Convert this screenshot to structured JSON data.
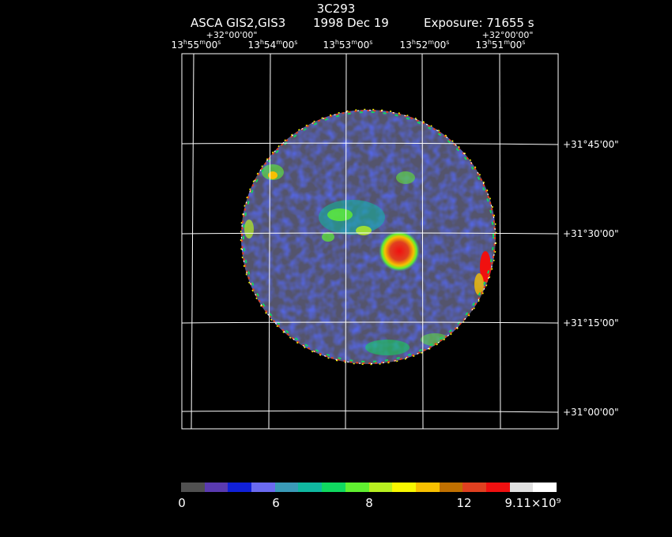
{
  "title": "3C293",
  "subtitle": {
    "instrument": "ASCA GIS2,GIS3",
    "date": "1998 Dec 19",
    "exposure": "Exposure: 71655 s"
  },
  "top_dec": {
    "left": "+32°00'00\"",
    "right": "+32°00'00\""
  },
  "ra_labels": [
    {
      "h": "13",
      "m": "55",
      "s": "00"
    },
    {
      "h": "13",
      "m": "54",
      "s": "00"
    },
    {
      "h": "13",
      "m": "53",
      "s": "00"
    },
    {
      "h": "13",
      "m": "52",
      "s": "00"
    },
    {
      "h": "13",
      "m": "51",
      "s": "00"
    }
  ],
  "dec_labels": [
    "+31°45'00\"",
    "+31°30'00\"",
    "+31°15'00\"",
    "+31°00'00\""
  ],
  "colorbar": {
    "colors": [
      "#505050",
      "#5a3ab0",
      "#1020d8",
      "#6a6af0",
      "#3a9ab8",
      "#10b8a0",
      "#10d860",
      "#60f030",
      "#b8f020",
      "#f8f800",
      "#f8c000",
      "#c07000",
      "#e04020",
      "#f01010",
      "#e0e0e0",
      "#ffffff"
    ],
    "tick_labels": [
      "0",
      "6",
      "8",
      "12",
      "9.11×10⁹"
    ]
  }
}
